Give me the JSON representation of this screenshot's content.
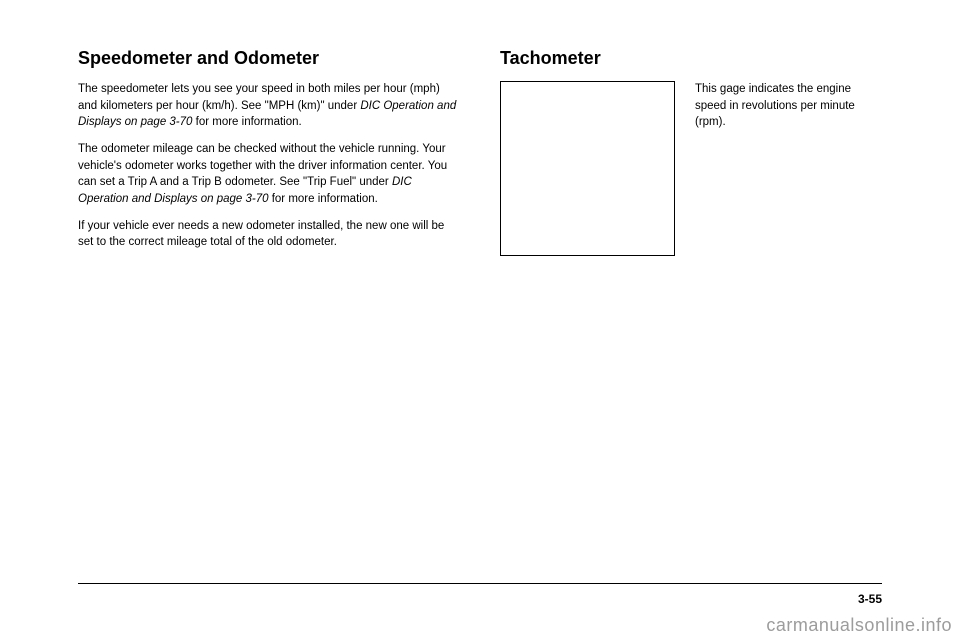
{
  "left": {
    "title": "Speedometer and Odometer",
    "p1_a": "The speedometer lets you see your speed in both miles per hour (mph) and kilometers per hour (km/h). See \"MPH (km)\" under ",
    "p1_ref": "DIC Operation and Displays on page 3-70",
    "p1_b": " for more information.",
    "p2_a": "The odometer mileage can be checked without the vehicle running. Your vehicle's odometer works together with the driver information center. You can set a Trip A and a Trip B odometer. See \"Trip Fuel\" under ",
    "p2_ref": "DIC Operation and Displays on page 3-70",
    "p2_b": " for more information.",
    "p3": "If your vehicle ever needs a new odometer installed, the new one will be set to the correct mileage total of the old odometer."
  },
  "right": {
    "title": "Tachometer",
    "side": "This gage indicates the engine speed in revolutions per minute (rpm)."
  },
  "pageNumber": "3-55",
  "watermark": "carmanualsonline.info"
}
